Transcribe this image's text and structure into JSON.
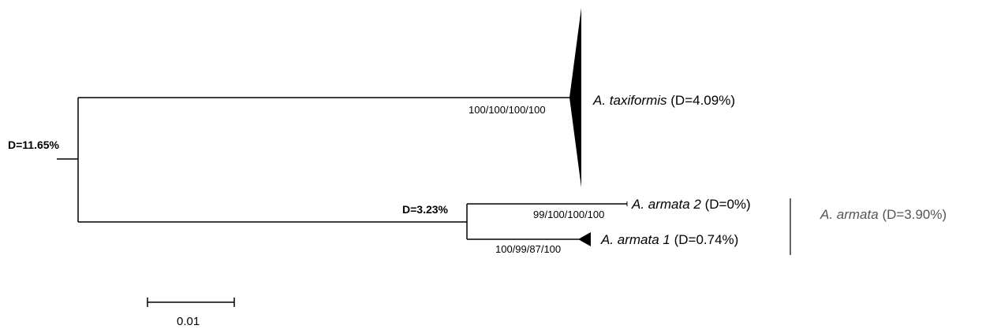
{
  "tree": {
    "root_distance": "D=11.65%",
    "armata_node_distance": "D=3.23%",
    "clades": [
      {
        "id": "taxiformis",
        "name": "A. taxiformis",
        "distance": "(D=4.09%)",
        "support": "100/100/100/100",
        "collapsed": true
      },
      {
        "id": "armata2",
        "name": "A. armata 2",
        "distance": "(D=0%)",
        "support": "99/100/100/100",
        "collapsed": false
      },
      {
        "id": "armata1",
        "name": "A. armata 1",
        "distance": "(D=0.74%)",
        "support": "100/99/87/100",
        "collapsed": true
      }
    ],
    "group_label": {
      "name": "A. armata",
      "distance": "(D=3.90%)"
    },
    "scale_bar": {
      "label": "0.01"
    },
    "colors": {
      "branch": "#000000",
      "group_label": "#555555"
    }
  }
}
